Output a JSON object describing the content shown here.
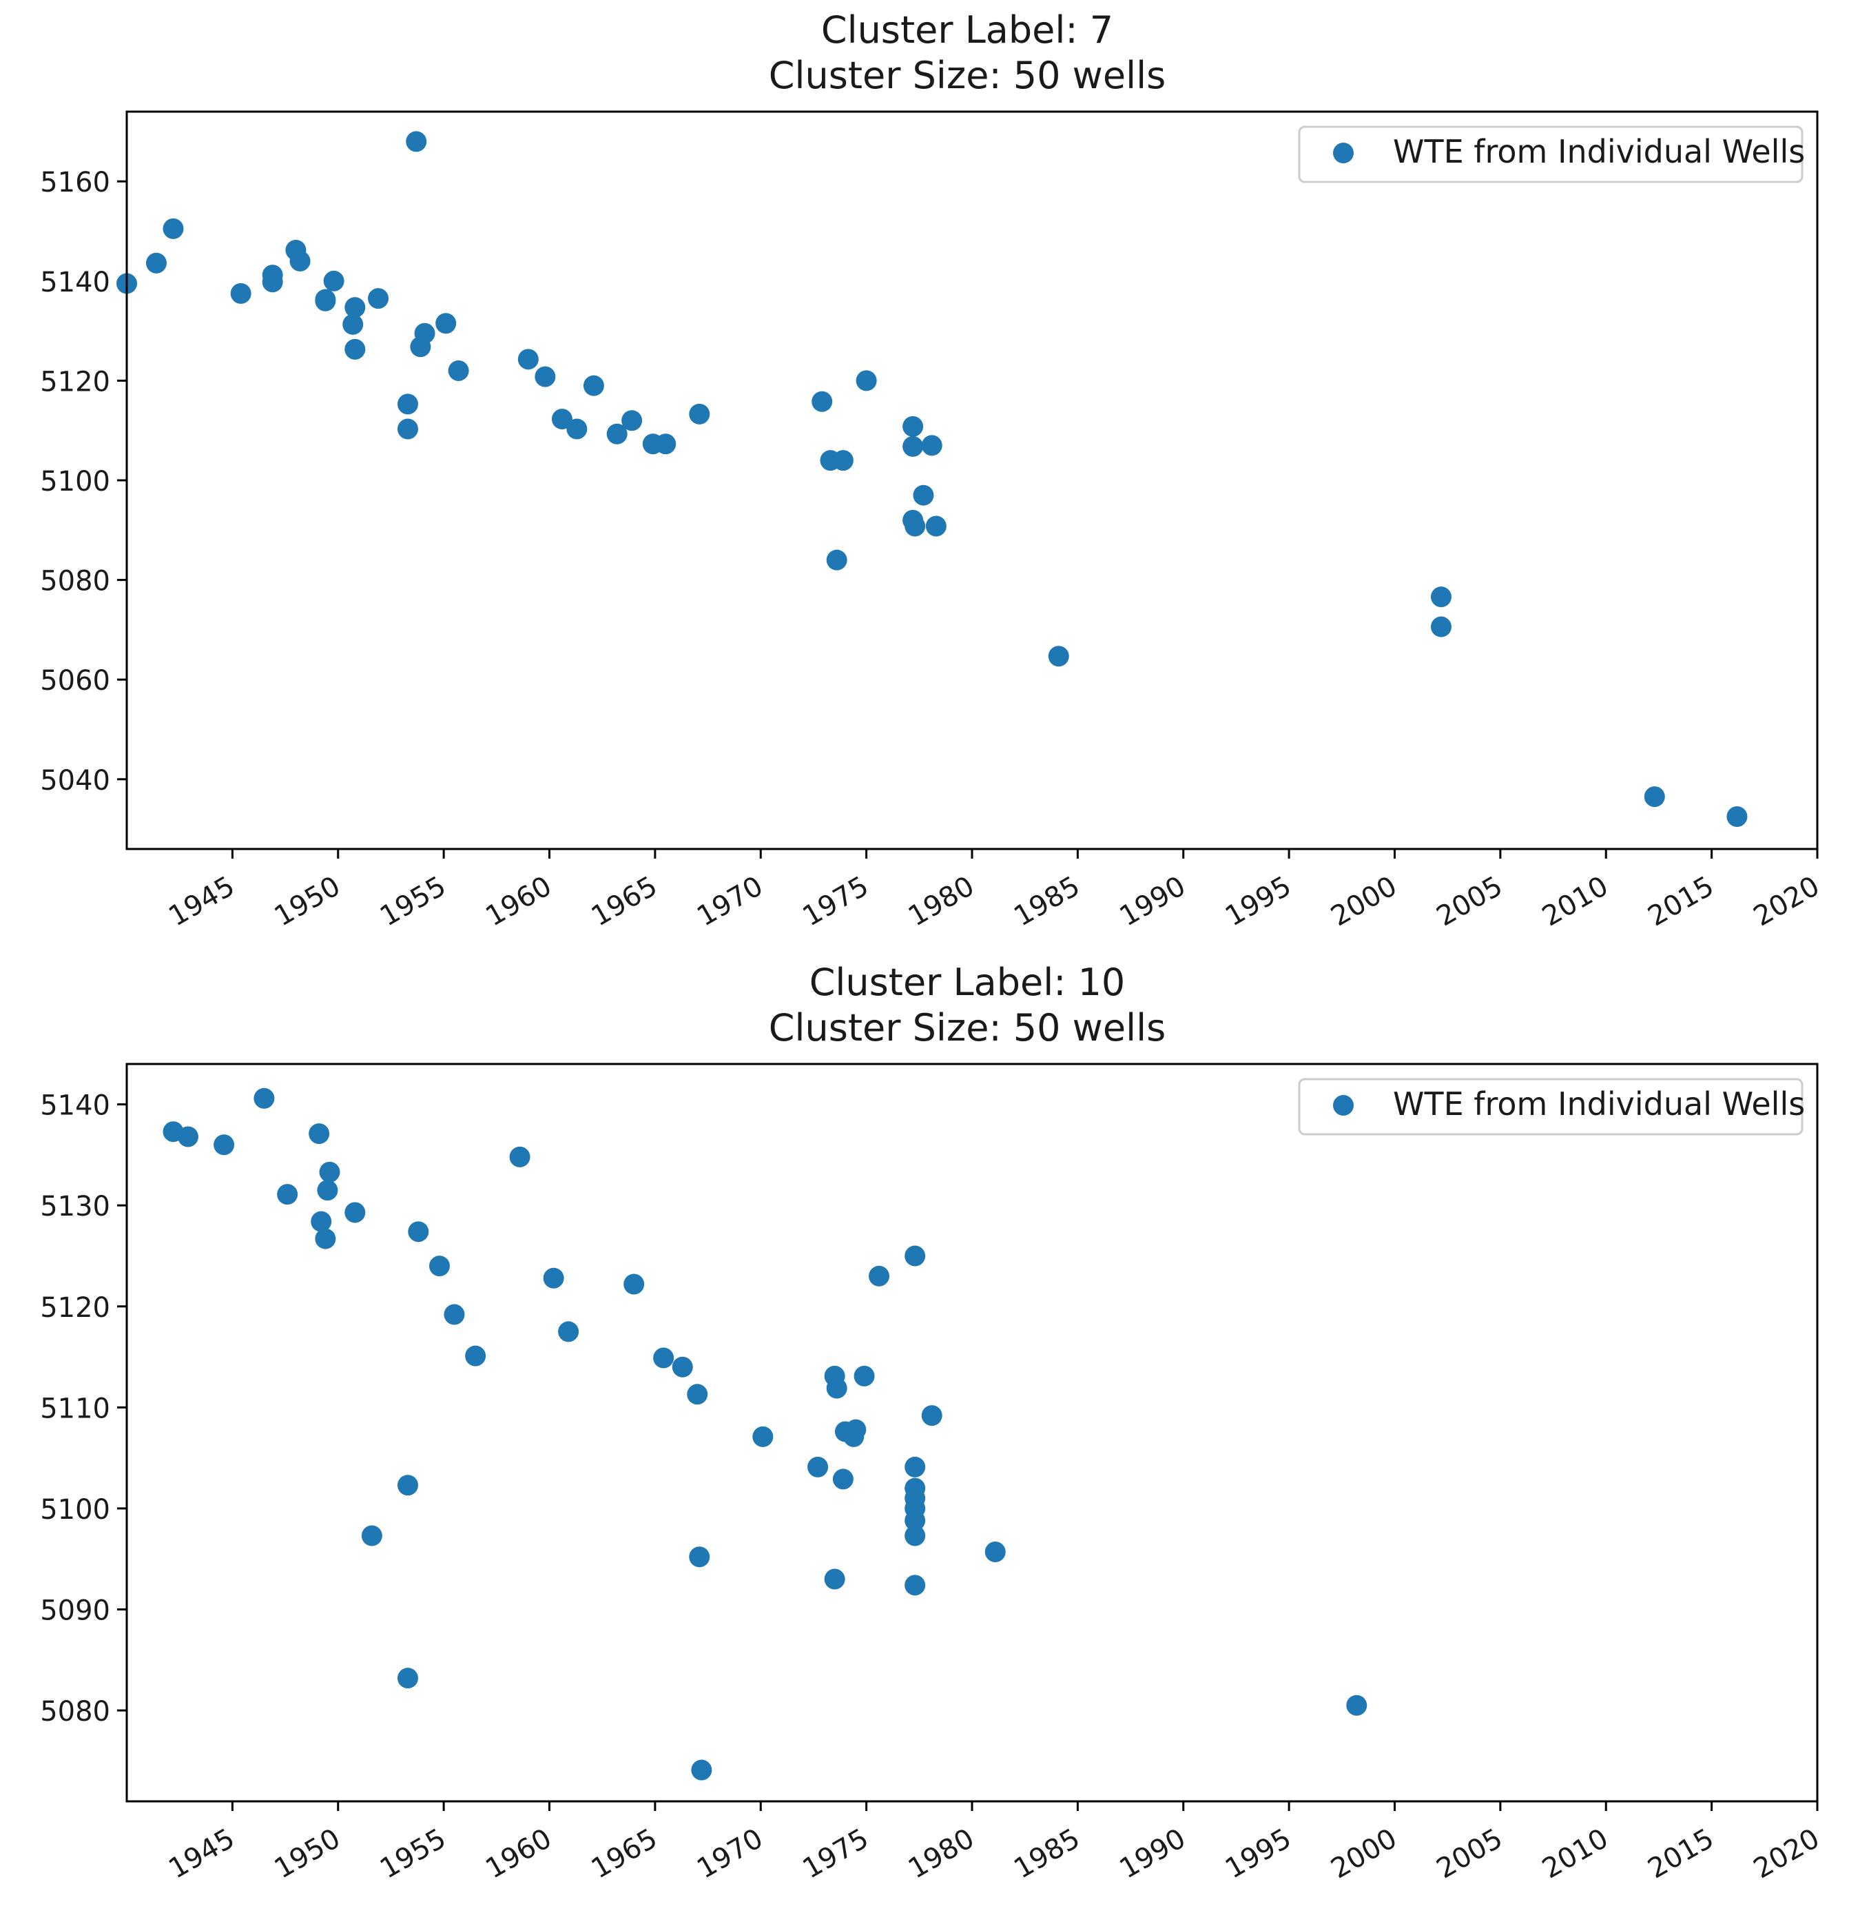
{
  "marker_color": "#1f77b4",
  "chart_data": [
    {
      "type": "scatter",
      "title": "Cluster Label: 7",
      "subtitle": "Cluster Size: 50 wells",
      "legend": {
        "label": "WTE from Individual Wells",
        "position": "top-right"
      },
      "xlim": [
        1940.0,
        2020.0
      ],
      "ylim": [
        5026,
        5174
      ],
      "xticks": [
        "1945",
        "1950",
        "1955",
        "1960",
        "1965",
        "1970",
        "1975",
        "1980",
        "1985",
        "1990",
        "1995",
        "2000",
        "2005",
        "2010",
        "2015",
        "2020"
      ],
      "yticks": [
        "5040",
        "5060",
        "5080",
        "5100",
        "5120",
        "5140",
        "5160"
      ],
      "points": [
        [
          1940.0,
          5139.5
        ],
        [
          1941.4,
          5143.6
        ],
        [
          1942.2,
          5150.5
        ],
        [
          1945.4,
          5137.5
        ],
        [
          1946.9,
          5141.2
        ],
        [
          1946.9,
          5139.8
        ],
        [
          1948.0,
          5146.2
        ],
        [
          1948.2,
          5144.0
        ],
        [
          1949.4,
          5136.3
        ],
        [
          1949.4,
          5136.0
        ],
        [
          1949.8,
          5140.0
        ],
        [
          1950.8,
          5134.7
        ],
        [
          1950.7,
          5131.3
        ],
        [
          1950.8,
          5126.3
        ],
        [
          1951.9,
          5136.5
        ],
        [
          1953.3,
          5115.3
        ],
        [
          1953.3,
          5110.3
        ],
        [
          1953.7,
          5168.0
        ],
        [
          1953.9,
          5126.8
        ],
        [
          1954.1,
          5129.5
        ],
        [
          1955.1,
          5131.5
        ],
        [
          1955.7,
          5122.0
        ],
        [
          1959.0,
          5124.3
        ],
        [
          1959.8,
          5120.8
        ],
        [
          1960.6,
          5112.3
        ],
        [
          1961.3,
          5110.3
        ],
        [
          1962.1,
          5119.0
        ],
        [
          1963.2,
          5109.3
        ],
        [
          1963.9,
          5112.0
        ],
        [
          1964.9,
          5107.3
        ],
        [
          1965.5,
          5107.3
        ],
        [
          1967.1,
          5113.3
        ],
        [
          1972.9,
          5115.8
        ],
        [
          1973.3,
          5104.0
        ],
        [
          1973.9,
          5104.0
        ],
        [
          1975.0,
          5120.0
        ],
        [
          1973.6,
          5084.0
        ],
        [
          1977.2,
          5110.8
        ],
        [
          1977.2,
          5106.8
        ],
        [
          1978.1,
          5107.0
        ],
        [
          1977.7,
          5097.0
        ],
        [
          1977.2,
          5092.0
        ],
        [
          1977.3,
          5090.8
        ],
        [
          1978.3,
          5090.8
        ],
        [
          1984.1,
          5064.7
        ],
        [
          2002.2,
          5076.6
        ],
        [
          2002.2,
          5070.6
        ],
        [
          2012.3,
          5036.5
        ],
        [
          2016.2,
          5032.5
        ]
      ]
    },
    {
      "type": "scatter",
      "title": "Cluster Label: 10",
      "subtitle": "Cluster Size: 50 wells",
      "legend": {
        "label": "WTE from Individual Wells",
        "position": "top-right"
      },
      "xlim": [
        1940.0,
        2020.0
      ],
      "ylim": [
        5071,
        5144
      ],
      "xticks": [
        "1945",
        "1950",
        "1955",
        "1960",
        "1965",
        "1970",
        "1975",
        "1980",
        "1985",
        "1990",
        "1995",
        "2000",
        "2005",
        "2010",
        "2015",
        "2020"
      ],
      "yticks": [
        "5080",
        "5090",
        "5100",
        "5110",
        "5120",
        "5130",
        "5140"
      ],
      "points": [
        [
          1942.2,
          5137.3
        ],
        [
          1942.9,
          5136.8
        ],
        [
          1944.6,
          5136.0
        ],
        [
          1946.5,
          5140.6
        ],
        [
          1947.6,
          5131.1
        ],
        [
          1949.1,
          5137.1
        ],
        [
          1949.6,
          5133.3
        ],
        [
          1949.5,
          5131.5
        ],
        [
          1949.2,
          5128.4
        ],
        [
          1949.4,
          5126.7
        ],
        [
          1950.8,
          5129.3
        ],
        [
          1951.6,
          5097.3
        ],
        [
          1953.3,
          5102.3
        ],
        [
          1953.3,
          5083.2
        ],
        [
          1953.8,
          5127.4
        ],
        [
          1954.8,
          5124.0
        ],
        [
          1955.5,
          5119.2
        ],
        [
          1956.5,
          5115.1
        ],
        [
          1958.6,
          5134.8
        ],
        [
          1960.2,
          5122.8
        ],
        [
          1960.9,
          5117.5
        ],
        [
          1964.0,
          5122.2
        ],
        [
          1965.4,
          5114.9
        ],
        [
          1966.3,
          5114.0
        ],
        [
          1967.0,
          5111.3
        ],
        [
          1967.1,
          5095.2
        ],
        [
          1967.2,
          5074.1
        ],
        [
          1970.1,
          5107.1
        ],
        [
          1972.7,
          5104.1
        ],
        [
          1973.5,
          5113.1
        ],
        [
          1973.6,
          5111.9
        ],
        [
          1973.9,
          5102.9
        ],
        [
          1974.0,
          5107.6
        ],
        [
          1974.5,
          5107.8
        ],
        [
          1974.4,
          5107.1
        ],
        [
          1973.5,
          5093.0
        ],
        [
          1974.9,
          5113.1
        ],
        [
          1975.6,
          5123.0
        ],
        [
          1977.3,
          5125.0
        ],
        [
          1977.3,
          5104.1
        ],
        [
          1977.3,
          5102.0
        ],
        [
          1977.3,
          5101.0
        ],
        [
          1977.3,
          5100.0
        ],
        [
          1977.3,
          5098.8
        ],
        [
          1977.3,
          5097.3
        ],
        [
          1977.3,
          5092.4
        ],
        [
          1978.1,
          5109.2
        ],
        [
          1981.1,
          5095.7
        ],
        [
          1998.2,
          5080.5
        ]
      ]
    }
  ]
}
